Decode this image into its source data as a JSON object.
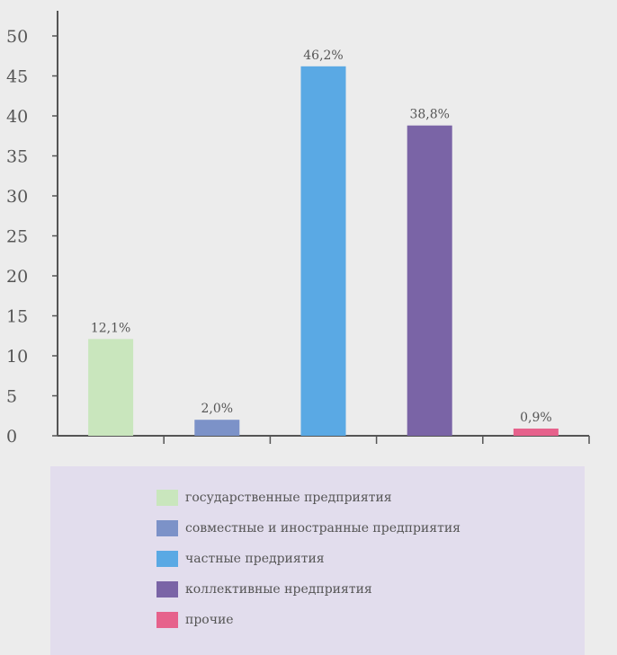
{
  "chart_data": {
    "type": "bar",
    "categories": [
      "государственные предприятия",
      "совместные и иностранные предприятия",
      "частные предриятия",
      "коллективные нредприятия",
      "прочие"
    ],
    "values": [
      12.1,
      2.0,
      46.2,
      38.8,
      0.9
    ],
    "data_labels": [
      "12,1%",
      "2,0%",
      "46,2%",
      "38,8%",
      "0,9%"
    ],
    "colors": [
      "#c9e6bd",
      "#7c92c8",
      "#5aa9e4",
      "#7a64a6",
      "#e6628c"
    ],
    "ylim": [
      0,
      50
    ],
    "yticks": [
      "0",
      "5",
      "10",
      "15",
      "20",
      "25",
      "30",
      "35",
      "40",
      "45",
      "50"
    ],
    "legend_position": "bottom",
    "grid": false
  }
}
